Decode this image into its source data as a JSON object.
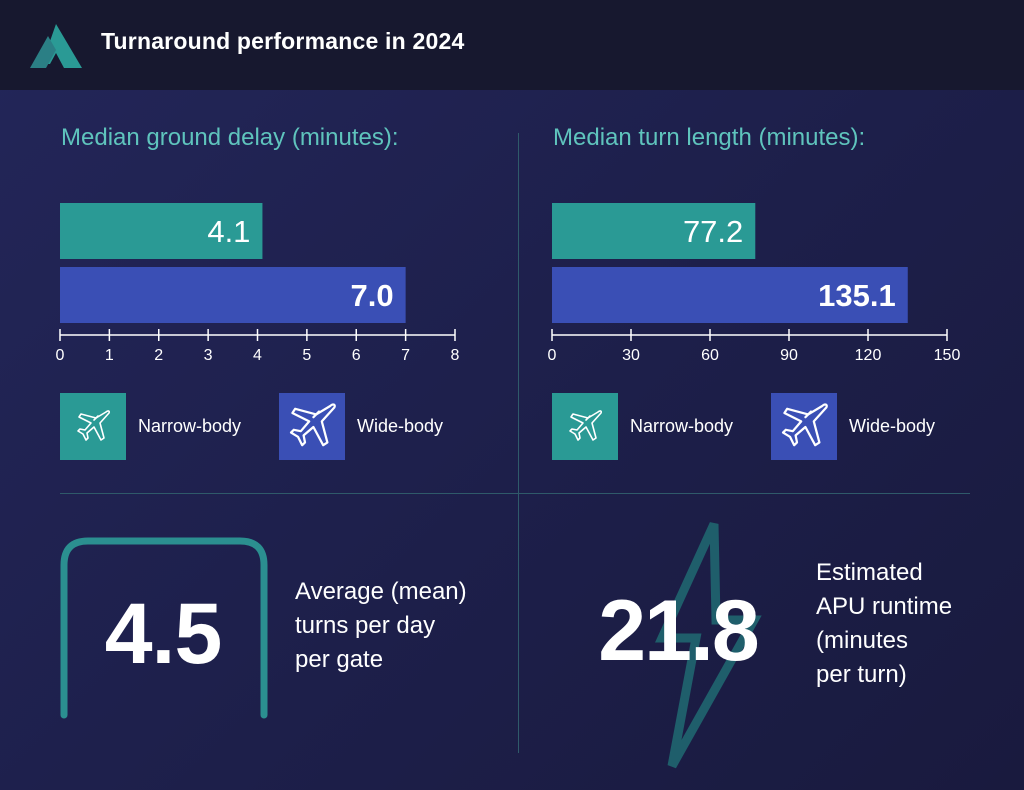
{
  "header": {
    "title": "Turnaround performance in 2024",
    "logo_icon": "triangle-logo-icon"
  },
  "colors": {
    "narrow": "#2a9a95",
    "wide": "#3a4fb5",
    "accent": "#5fc4bd",
    "teal_dark": "#2b7f85",
    "axis": "#ffffff"
  },
  "chart_data": [
    {
      "type": "bar",
      "orientation": "horizontal",
      "title": "Median ground delay (minutes):",
      "categories": [
        "Narrow-body",
        "Wide-body"
      ],
      "values": [
        4.1,
        7.0
      ],
      "labels": [
        "4.1",
        "7.0"
      ],
      "xlim": [
        0,
        8
      ],
      "ticks": [
        0,
        1,
        2,
        3,
        4,
        5,
        6,
        7,
        8
      ],
      "grid": false,
      "legend": "bottom"
    },
    {
      "type": "bar",
      "orientation": "horizontal",
      "title": "Median turn length (minutes):",
      "categories": [
        "Narrow-body",
        "Wide-body"
      ],
      "values": [
        77.2,
        135.1
      ],
      "labels": [
        "77.2",
        "135.1"
      ],
      "xlim": [
        0,
        150
      ],
      "ticks": [
        0,
        30,
        60,
        90,
        120,
        150
      ],
      "grid": false,
      "legend": "bottom"
    }
  ],
  "legend": {
    "items": [
      {
        "label": "Narrow-body",
        "icon": "narrow-body-plane-icon"
      },
      {
        "label": "Wide-body",
        "icon": "wide-body-plane-icon"
      }
    ]
  },
  "stats": {
    "turns": {
      "value": "4.5",
      "lines": [
        "Average (mean)",
        "turns per day",
        "per gate"
      ],
      "icon": "gate-frame-icon"
    },
    "apu": {
      "value": "21.8",
      "lines": [
        "Estimated",
        "APU runtime",
        "(minutes",
        "per turn)"
      ],
      "icon": "lightning-bolt-icon"
    }
  }
}
